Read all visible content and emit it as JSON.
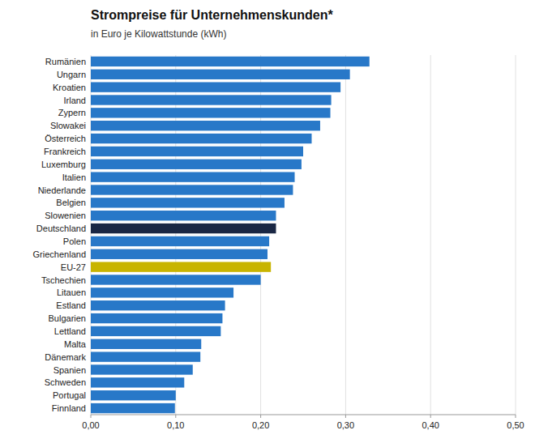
{
  "chart_data": {
    "type": "bar",
    "orientation": "horizontal",
    "title": "Strompreise für Unternehmenskunden*",
    "subtitle": "in Euro je Kilowattstunde (kWh)",
    "categories": [
      "Rumänien",
      "Ungarn",
      "Kroatien",
      "Irland",
      "Zypern",
      "Slowakei",
      "Österreich",
      "Frankreich",
      "Luxemburg",
      "Italien",
      "Niederlande",
      "Belgien",
      "Slowenien",
      "Deutschland",
      "Polen",
      "Griechenland",
      "EU-27",
      "Tschechien",
      "Litauen",
      "Estland",
      "Bulgarien",
      "Lettland",
      "Malta",
      "Dänemark",
      "Spanien",
      "Schweden",
      "Portugal",
      "Finnland"
    ],
    "values": [
      0.328,
      0.305,
      0.294,
      0.283,
      0.282,
      0.27,
      0.26,
      0.25,
      0.248,
      0.24,
      0.238,
      0.228,
      0.218,
      0.218,
      0.21,
      0.208,
      0.212,
      0.2,
      0.168,
      0.158,
      0.155,
      0.153,
      0.13,
      0.129,
      0.12,
      0.11,
      0.1,
      0.099
    ],
    "colors": [
      "#2878C8",
      "#2878C8",
      "#2878C8",
      "#2878C8",
      "#2878C8",
      "#2878C8",
      "#2878C8",
      "#2878C8",
      "#2878C8",
      "#2878C8",
      "#2878C8",
      "#2878C8",
      "#2878C8",
      "#1a2744",
      "#2878C8",
      "#2878C8",
      "#C8B400",
      "#2878C8",
      "#2878C8",
      "#2878C8",
      "#2878C8",
      "#2878C8",
      "#2878C8",
      "#2878C8",
      "#2878C8",
      "#2878C8",
      "#2878C8",
      "#2878C8"
    ],
    "xlim": [
      0,
      0.5
    ],
    "xticks": [
      {
        "value": 0.0,
        "label": "0,00"
      },
      {
        "value": 0.1,
        "label": "0,10"
      },
      {
        "value": 0.2,
        "label": "0,20"
      },
      {
        "value": 0.3,
        "label": "0,30"
      },
      {
        "value": 0.4,
        "label": "0,40"
      },
      {
        "value": 0.5,
        "label": "0,50"
      }
    ],
    "grid": true
  }
}
